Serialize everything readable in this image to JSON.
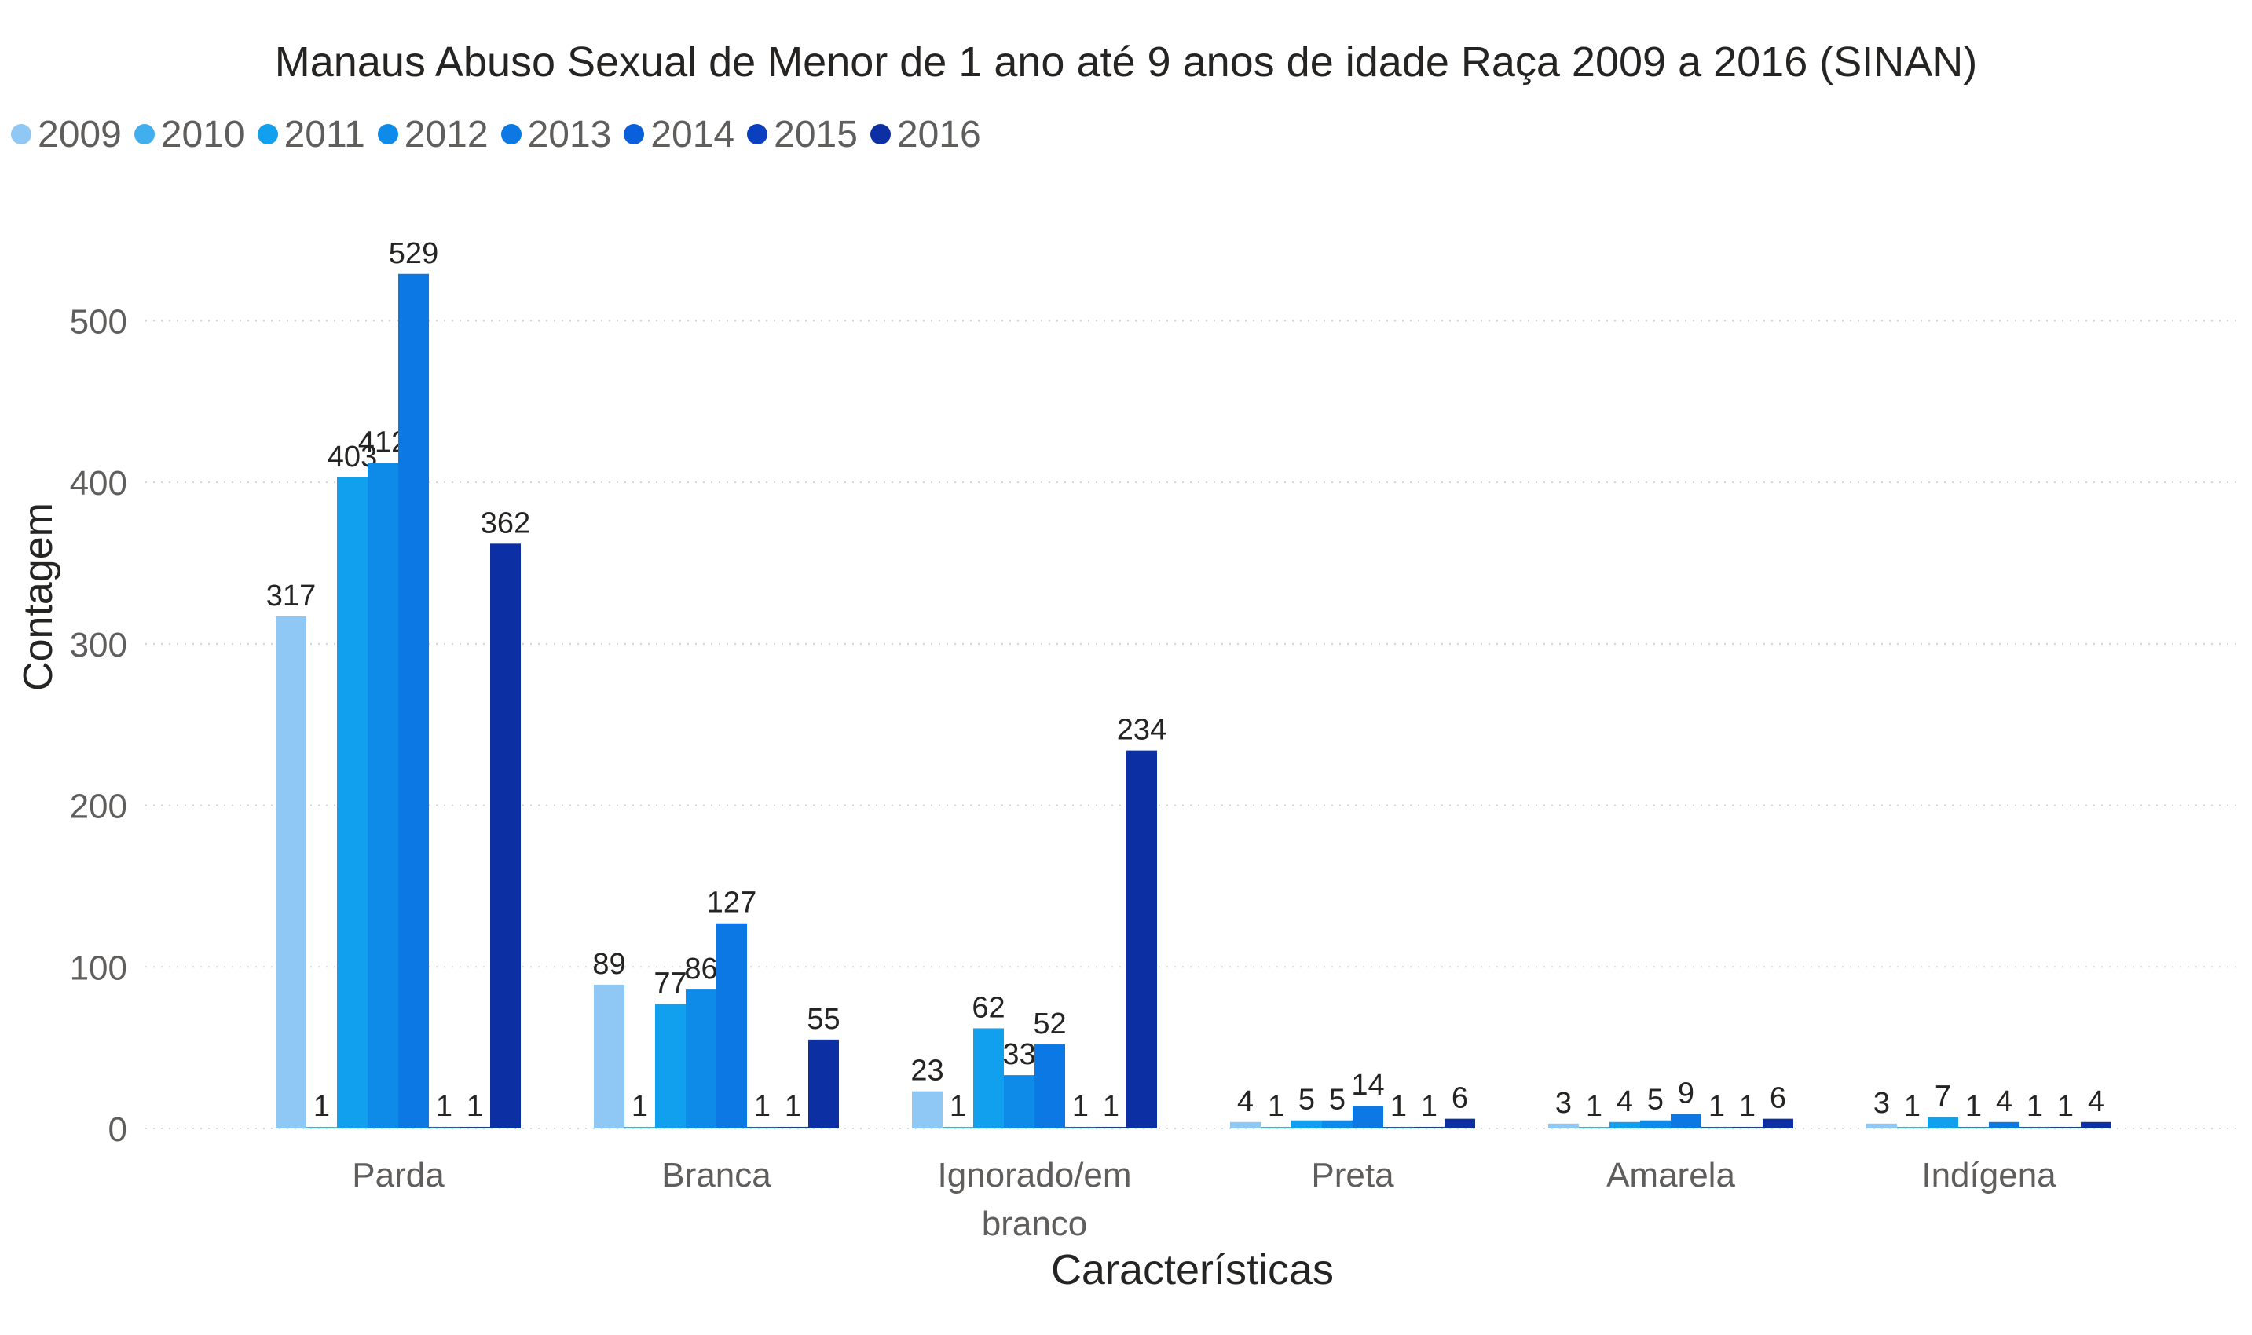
{
  "chart_data": {
    "type": "bar",
    "title": "Manaus Abuso Sexual de Menor de 1 ano até 9 anos de idade Raça 2009 a 2016 (SINAN)",
    "xlabel": "Características",
    "ylabel": "Contagem",
    "categories": [
      "Parda",
      "Branca",
      "Ignorado/em branco",
      "Preta",
      "Amarela",
      "Indígena"
    ],
    "category_lines": [
      [
        "Parda"
      ],
      [
        "Branca"
      ],
      [
        "Ignorado/em",
        "branco"
      ],
      [
        "Preta"
      ],
      [
        "Amarela"
      ],
      [
        "Indígena"
      ]
    ],
    "ylim": [
      0,
      560
    ],
    "yticks": [
      0,
      100,
      200,
      300,
      400,
      500
    ],
    "grid": true,
    "legend_position": "top-left",
    "series": [
      {
        "name": "2009",
        "color": "#8fc8f5",
        "values": [
          317,
          89,
          23,
          4,
          3,
          3
        ]
      },
      {
        "name": "2010",
        "color": "#41aeee",
        "values": [
          1,
          1,
          1,
          1,
          1,
          1
        ]
      },
      {
        "name": "2011",
        "color": "#11a0ee",
        "values": [
          403,
          77,
          62,
          5,
          4,
          7
        ]
      },
      {
        "name": "2012",
        "color": "#0e8be8",
        "values": [
          412,
          86,
          33,
          5,
          5,
          1
        ]
      },
      {
        "name": "2013",
        "color": "#0b78e3",
        "values": [
          529,
          127,
          52,
          14,
          9,
          4
        ]
      },
      {
        "name": "2014",
        "color": "#0a5fdc",
        "values": [
          1,
          1,
          1,
          1,
          1,
          1
        ]
      },
      {
        "name": "2015",
        "color": "#0a40c0",
        "values": [
          1,
          1,
          1,
          1,
          1,
          1
        ]
      },
      {
        "name": "2016",
        "color": "#0c2fa3",
        "values": [
          362,
          55,
          234,
          6,
          6,
          4
        ]
      }
    ]
  }
}
